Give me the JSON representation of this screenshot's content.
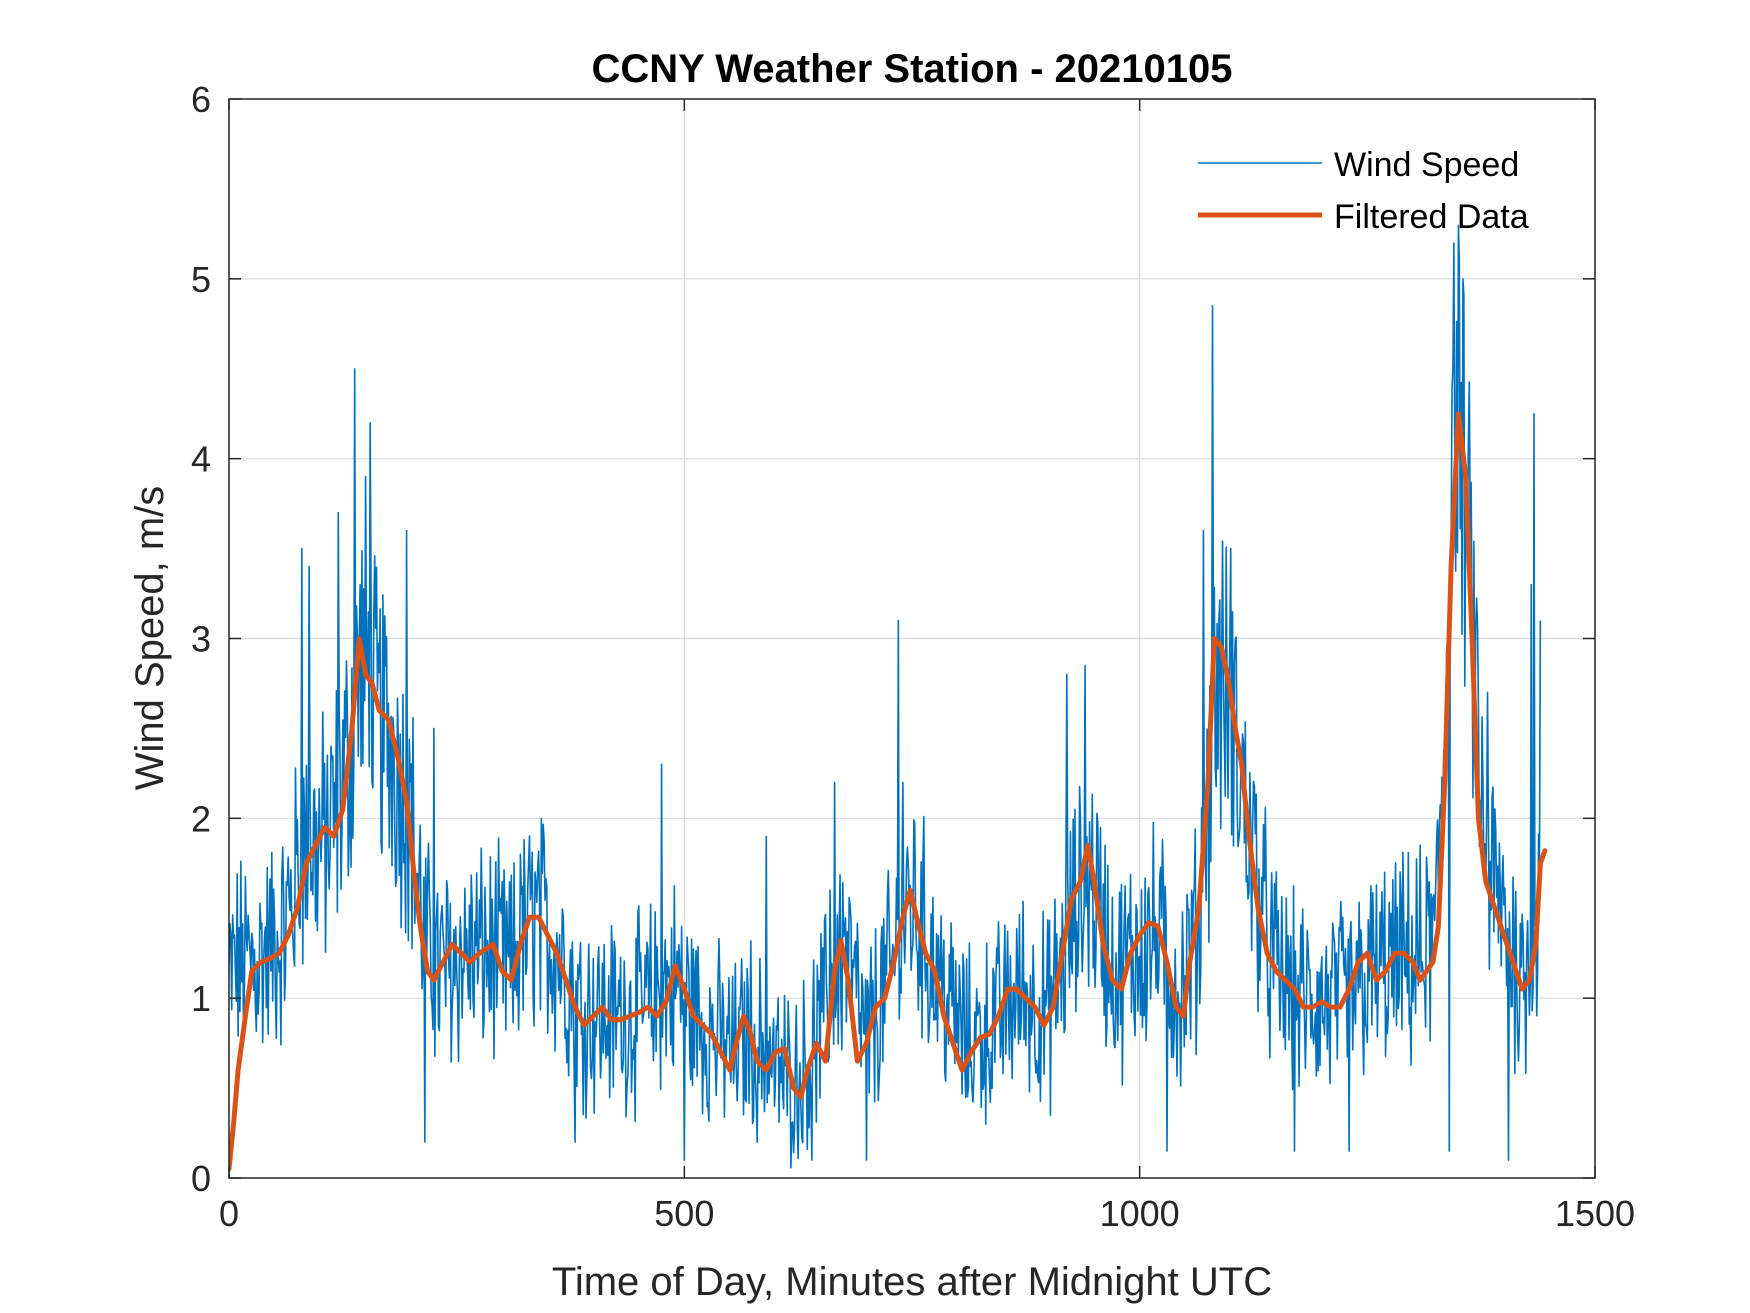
{
  "chart_data": {
    "type": "line",
    "title": "CCNY Weather Station - 20210105",
    "xlabel": "Time of Day, Minutes after Midnight UTC",
    "ylabel": "Wind Speed, m/s",
    "xlim": [
      0,
      1500
    ],
    "ylim": [
      0,
      6
    ],
    "xticks": [
      0,
      500,
      1000,
      1500
    ],
    "xtick_labels": [
      "0",
      "500",
      "1000",
      "1500"
    ],
    "yticks": [
      0,
      1,
      2,
      3,
      4,
      5,
      6
    ],
    "ytick_labels": [
      "0",
      "1",
      "2",
      "3",
      "4",
      "5",
      "6"
    ],
    "grid": true,
    "legend_position": "top-right",
    "series": [
      {
        "name": "Wind Speed",
        "color": "#0072BD",
        "style": "thin",
        "anchors": [
          [
            0,
            1.1
          ],
          [
            10,
            1.2
          ],
          [
            30,
            1.2
          ],
          [
            60,
            1.35
          ],
          [
            80,
            1.8
          ],
          [
            110,
            1.9
          ],
          [
            130,
            2.3
          ],
          [
            145,
            2.9
          ],
          [
            160,
            2.6
          ],
          [
            180,
            2.4
          ],
          [
            200,
            2.0
          ],
          [
            215,
            1.3
          ],
          [
            230,
            1.15
          ],
          [
            260,
            1.25
          ],
          [
            290,
            1.25
          ],
          [
            310,
            1.15
          ],
          [
            335,
            1.45
          ],
          [
            360,
            1.3
          ],
          [
            385,
            0.95
          ],
          [
            410,
            0.9
          ],
          [
            450,
            0.92
          ],
          [
            490,
            1.1
          ],
          [
            520,
            0.85
          ],
          [
            555,
            0.7
          ],
          [
            575,
            0.85
          ],
          [
            600,
            0.6
          ],
          [
            625,
            0.55
          ],
          [
            650,
            0.85
          ],
          [
            675,
            1.3
          ],
          [
            700,
            0.75
          ],
          [
            730,
            1.2
          ],
          [
            750,
            1.55
          ],
          [
            780,
            1.1
          ],
          [
            810,
            0.75
          ],
          [
            840,
            0.85
          ],
          [
            870,
            1.05
          ],
          [
            900,
            0.9
          ],
          [
            925,
            1.4
          ],
          [
            945,
            1.7
          ],
          [
            975,
            1.1
          ],
          [
            1000,
            1.3
          ],
          [
            1020,
            1.35
          ],
          [
            1045,
            1.0
          ],
          [
            1065,
            1.4
          ],
          [
            1085,
            2.8
          ],
          [
            1100,
            2.6
          ],
          [
            1120,
            1.9
          ],
          [
            1145,
            1.2
          ],
          [
            1170,
            1.0
          ],
          [
            1200,
            0.95
          ],
          [
            1230,
            1.0
          ],
          [
            1260,
            1.15
          ],
          [
            1300,
            1.2
          ],
          [
            1325,
            1.3
          ],
          [
            1340,
            3.3
          ],
          [
            1350,
            4.3
          ],
          [
            1362,
            3.4
          ],
          [
            1378,
            1.8
          ],
          [
            1395,
            1.5
          ],
          [
            1420,
            1.1
          ],
          [
            1440,
            1.5
          ]
        ],
        "spikes": [
          [
            80,
            3.5
          ],
          [
            88,
            3.4
          ],
          [
            120,
            3.7
          ],
          [
            138,
            4.5
          ],
          [
            150,
            3.9
          ],
          [
            155,
            4.2
          ],
          [
            195,
            3.6
          ],
          [
            225,
            2.5
          ],
          [
            320,
            1.8
          ],
          [
            395,
            1.3
          ],
          [
            475,
            2.3
          ],
          [
            590,
            1.9
          ],
          [
            660,
            1.6
          ],
          [
            665,
            2.2
          ],
          [
            740,
            2.2
          ],
          [
            730,
            1.2
          ],
          [
            735,
            3.1
          ],
          [
            920,
            2.8
          ],
          [
            940,
            2.85
          ],
          [
            1070,
            3.6
          ],
          [
            1080,
            4.85
          ],
          [
            1100,
            3.5
          ],
          [
            1340,
            5.5
          ],
          [
            1345,
            5.2
          ],
          [
            1382,
            2.7
          ],
          [
            1430,
            3.3
          ],
          [
            1433,
            4.25
          ],
          [
            1440,
            3.1
          ]
        ],
        "dips": [
          [
            215,
            0.2
          ],
          [
            380,
            0.2
          ],
          [
            500,
            0.1
          ],
          [
            580,
            0.2
          ],
          [
            640,
            0.1
          ],
          [
            700,
            0.1
          ],
          [
            1030,
            0.15
          ],
          [
            1170,
            0.15
          ],
          [
            1230,
            0.15
          ],
          [
            1340,
            0.15
          ],
          [
            1405,
            0.1
          ]
        ],
        "num_points": 1441,
        "x_step": 1
      },
      {
        "name": "Filtered Data",
        "color": "#D95319",
        "style": "thick",
        "points": [
          [
            0,
            0.05
          ],
          [
            5,
            0.3
          ],
          [
            10,
            0.6
          ],
          [
            18,
            0.9
          ],
          [
            25,
            1.15
          ],
          [
            35,
            1.2
          ],
          [
            45,
            1.22
          ],
          [
            55,
            1.25
          ],
          [
            65,
            1.35
          ],
          [
            75,
            1.5
          ],
          [
            85,
            1.75
          ],
          [
            95,
            1.85
          ],
          [
            105,
            1.95
          ],
          [
            115,
            1.9
          ],
          [
            125,
            2.05
          ],
          [
            135,
            2.5
          ],
          [
            143,
            3.0
          ],
          [
            150,
            2.8
          ],
          [
            157,
            2.75
          ],
          [
            165,
            2.6
          ],
          [
            175,
            2.55
          ],
          [
            185,
            2.35
          ],
          [
            195,
            2.1
          ],
          [
            203,
            1.7
          ],
          [
            210,
            1.4
          ],
          [
            218,
            1.15
          ],
          [
            225,
            1.1
          ],
          [
            235,
            1.2
          ],
          [
            245,
            1.3
          ],
          [
            255,
            1.25
          ],
          [
            265,
            1.2
          ],
          [
            275,
            1.25
          ],
          [
            290,
            1.3
          ],
          [
            300,
            1.15
          ],
          [
            310,
            1.1
          ],
          [
            320,
            1.3
          ],
          [
            330,
            1.45
          ],
          [
            340,
            1.45
          ],
          [
            350,
            1.35
          ],
          [
            360,
            1.25
          ],
          [
            370,
            1.1
          ],
          [
            380,
            0.95
          ],
          [
            390,
            0.85
          ],
          [
            400,
            0.9
          ],
          [
            410,
            0.95
          ],
          [
            420,
            0.88
          ],
          [
            430,
            0.88
          ],
          [
            440,
            0.9
          ],
          [
            450,
            0.92
          ],
          [
            460,
            0.95
          ],
          [
            470,
            0.9
          ],
          [
            480,
            0.98
          ],
          [
            490,
            1.18
          ],
          [
            500,
            1.05
          ],
          [
            510,
            0.9
          ],
          [
            520,
            0.85
          ],
          [
            530,
            0.8
          ],
          [
            540,
            0.7
          ],
          [
            550,
            0.6
          ],
          [
            557,
            0.75
          ],
          [
            565,
            0.9
          ],
          [
            572,
            0.82
          ],
          [
            580,
            0.65
          ],
          [
            590,
            0.6
          ],
          [
            600,
            0.7
          ],
          [
            610,
            0.72
          ],
          [
            620,
            0.5
          ],
          [
            628,
            0.45
          ],
          [
            635,
            0.6
          ],
          [
            645,
            0.75
          ],
          [
            655,
            0.65
          ],
          [
            665,
            1.15
          ],
          [
            672,
            1.32
          ],
          [
            680,
            1.1
          ],
          [
            690,
            0.65
          ],
          [
            700,
            0.75
          ],
          [
            710,
            0.95
          ],
          [
            720,
            1.0
          ],
          [
            730,
            1.2
          ],
          [
            740,
            1.45
          ],
          [
            748,
            1.6
          ],
          [
            755,
            1.45
          ],
          [
            765,
            1.25
          ],
          [
            775,
            1.15
          ],
          [
            785,
            0.9
          ],
          [
            795,
            0.75
          ],
          [
            805,
            0.6
          ],
          [
            815,
            0.7
          ],
          [
            825,
            0.78
          ],
          [
            835,
            0.8
          ],
          [
            845,
            0.9
          ],
          [
            855,
            1.05
          ],
          [
            865,
            1.05
          ],
          [
            875,
            1.0
          ],
          [
            885,
            0.95
          ],
          [
            895,
            0.85
          ],
          [
            905,
            0.95
          ],
          [
            915,
            1.25
          ],
          [
            925,
            1.55
          ],
          [
            935,
            1.65
          ],
          [
            943,
            1.85
          ],
          [
            950,
            1.65
          ],
          [
            960,
            1.3
          ],
          [
            970,
            1.1
          ],
          [
            980,
            1.05
          ],
          [
            990,
            1.25
          ],
          [
            1000,
            1.35
          ],
          [
            1010,
            1.42
          ],
          [
            1020,
            1.4
          ],
          [
            1030,
            1.2
          ],
          [
            1040,
            0.95
          ],
          [
            1048,
            0.9
          ],
          [
            1055,
            1.2
          ],
          [
            1065,
            1.5
          ],
          [
            1075,
            2.2
          ],
          [
            1082,
            3.0
          ],
          [
            1090,
            2.95
          ],
          [
            1098,
            2.75
          ],
          [
            1105,
            2.5
          ],
          [
            1112,
            2.3
          ],
          [
            1120,
            1.9
          ],
          [
            1130,
            1.5
          ],
          [
            1140,
            1.25
          ],
          [
            1150,
            1.15
          ],
          [
            1160,
            1.1
          ],
          [
            1170,
            1.05
          ],
          [
            1180,
            0.95
          ],
          [
            1190,
            0.95
          ],
          [
            1200,
            0.98
          ],
          [
            1210,
            0.95
          ],
          [
            1220,
            0.95
          ],
          [
            1230,
            1.05
          ],
          [
            1240,
            1.2
          ],
          [
            1250,
            1.25
          ],
          [
            1260,
            1.1
          ],
          [
            1270,
            1.15
          ],
          [
            1280,
            1.25
          ],
          [
            1290,
            1.25
          ],
          [
            1300,
            1.2
          ],
          [
            1308,
            1.1
          ],
          [
            1315,
            1.15
          ],
          [
            1322,
            1.2
          ],
          [
            1328,
            1.4
          ],
          [
            1335,
            2.2
          ],
          [
            1342,
            3.4
          ],
          [
            1350,
            4.25
          ],
          [
            1358,
            3.9
          ],
          [
            1365,
            3.0
          ],
          [
            1372,
            2.0
          ],
          [
            1380,
            1.65
          ],
          [
            1390,
            1.5
          ],
          [
            1400,
            1.35
          ],
          [
            1410,
            1.2
          ],
          [
            1420,
            1.05
          ],
          [
            1428,
            1.1
          ],
          [
            1435,
            1.3
          ],
          [
            1440,
            1.75
          ],
          [
            1445,
            1.82
          ]
        ]
      }
    ]
  }
}
